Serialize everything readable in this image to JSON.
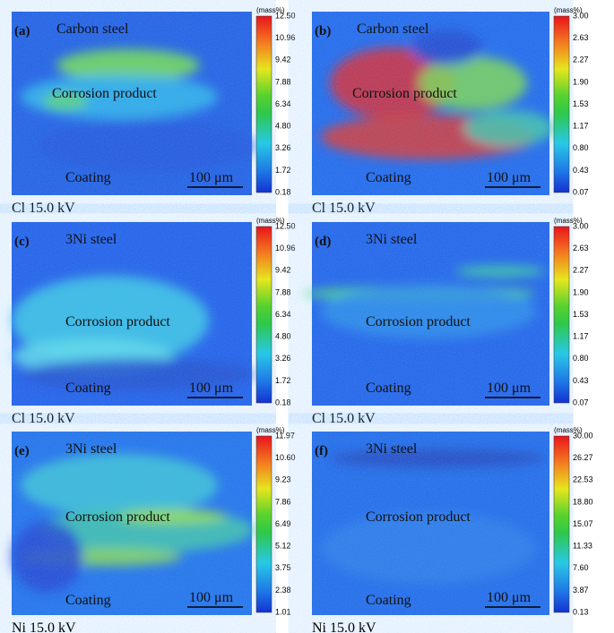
{
  "unit": "(mass%)",
  "panels": [
    {
      "label": "(a)",
      "top": "Carbon steel",
      "middle": "Corrosion product",
      "bottom": "Coating",
      "scale": "100 μm",
      "caption": "Cl 15.0 kV",
      "ticks": [
        "12.50",
        "10.96",
        "9.42",
        "7.88",
        "6.34",
        "4.80",
        "3.26",
        "1.72",
        "0.18"
      ]
    },
    {
      "label": "(b)",
      "top": "Carbon steel",
      "middle": "Corrosion product",
      "bottom": "Coating",
      "scale": "100 μm",
      "caption": "Cl 15.0 kV",
      "ticks": [
        "3.00",
        "2.63",
        "2.27",
        "1.90",
        "1.53",
        "1.17",
        "0.80",
        "0.43",
        "0.07"
      ]
    },
    {
      "label": "(c)",
      "top": "3Ni steel",
      "middle": "Corrosion product",
      "bottom": "Coating",
      "scale": "100 μm",
      "caption": "Cl 15.0 kV",
      "ticks": [
        "12.50",
        "10.96",
        "9.42",
        "7.88",
        "6.34",
        "4.80",
        "3.26",
        "1.72",
        "0.18"
      ]
    },
    {
      "label": "(d)",
      "top": "3Ni steel",
      "middle": "Corrosion product",
      "bottom": "Coating",
      "scale": "100 μm",
      "caption": "Cl 15.0 kV",
      "ticks": [
        "3.00",
        "2.63",
        "2.27",
        "1.90",
        "1.53",
        "1.17",
        "0.80",
        "0.43",
        "0.07"
      ]
    },
    {
      "label": "(e)",
      "top": "3Ni steel",
      "middle": "Corrosion product",
      "bottom": "Coating",
      "scale": "100 μm",
      "caption": "Ni 15.0 kV",
      "ticks": [
        "11.97",
        "10.60",
        "9.23",
        "7.86",
        "6.49",
        "5.12",
        "3.75",
        "2.38",
        "1.01"
      ]
    },
    {
      "label": "(f)",
      "top": "3Ni steel",
      "middle": "Corrosion product",
      "bottom": "Coating",
      "scale": "100 μm",
      "caption": "Ni 15.0 kV",
      "ticks": [
        "30.00",
        "26.27",
        "22.53",
        "18.80",
        "15.07",
        "11.33",
        "7.60",
        "3.87",
        "0.13"
      ]
    }
  ]
}
